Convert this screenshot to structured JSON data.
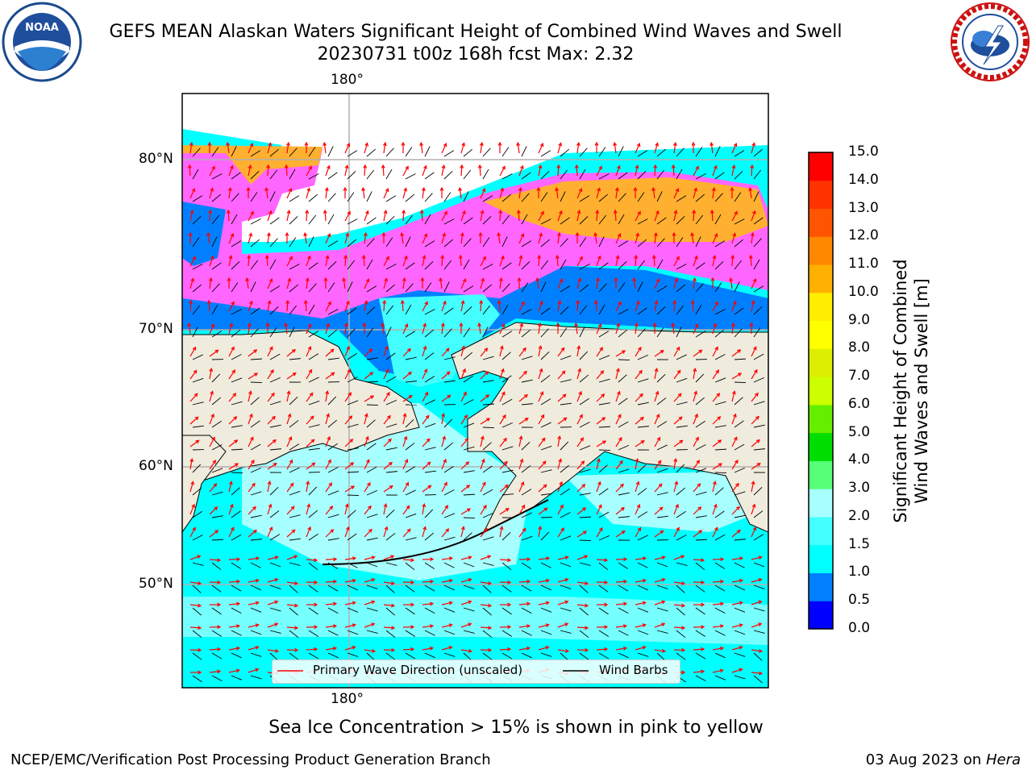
{
  "title": {
    "line1": "GEFS MEAN Alaskan Waters Significant Height of Combined Wind Waves and Swell",
    "line2": "20230731 t00z 168h fcst   Max: 2.32"
  },
  "logos": {
    "left": "noaa-logo",
    "right": "national-weather-service-logo"
  },
  "map": {
    "lat_ticks": [
      "80°N",
      "70°N",
      "60°N",
      "50°N"
    ],
    "lon_tick_top": "180°",
    "lon_tick_bottom": "180°",
    "colors": {
      "land": "#efecdd",
      "water_low": "#00ffff",
      "water_mid": "#88ffff",
      "ice_pink": "#ff66ff",
      "ice_orange": "#ffb030",
      "shallow": "#0080ff",
      "grid": "#b0b0b0"
    }
  },
  "legend": {
    "wave": "Primary Wave Direction (unscaled)",
    "barbs": "Wind Barbs"
  },
  "colorbar": {
    "title_line1": "Significant Height of Combined",
    "title_line2": "Wind Waves and Swell [m]",
    "ticks": [
      "0.0",
      "0.5",
      "1.0",
      "1.5",
      "2.0",
      "3.0",
      "4.0",
      "5.0",
      "6.0",
      "7.0",
      "8.0",
      "9.0",
      "10.0",
      "11.0",
      "12.0",
      "13.0",
      "14.0",
      "15.0"
    ],
    "colors": [
      "#0000ff",
      "#0080ff",
      "#00ffff",
      "#44ffff",
      "#a8ffff",
      "#55ff77",
      "#00dd00",
      "#66ee00",
      "#ccff00",
      "#ddee00",
      "#ffff00",
      "#ffee00",
      "#ffb000",
      "#ff8800",
      "#ff5500",
      "#ff3300",
      "#ff0000"
    ]
  },
  "caption": "Sea Ice Concentration > 15% is shown in pink to yellow",
  "footer": {
    "left": "NCEP/EMC/Verification Post Processing Product Generation Branch",
    "right_date": "03 Aug 2023 on",
    "right_host": "Hera"
  }
}
